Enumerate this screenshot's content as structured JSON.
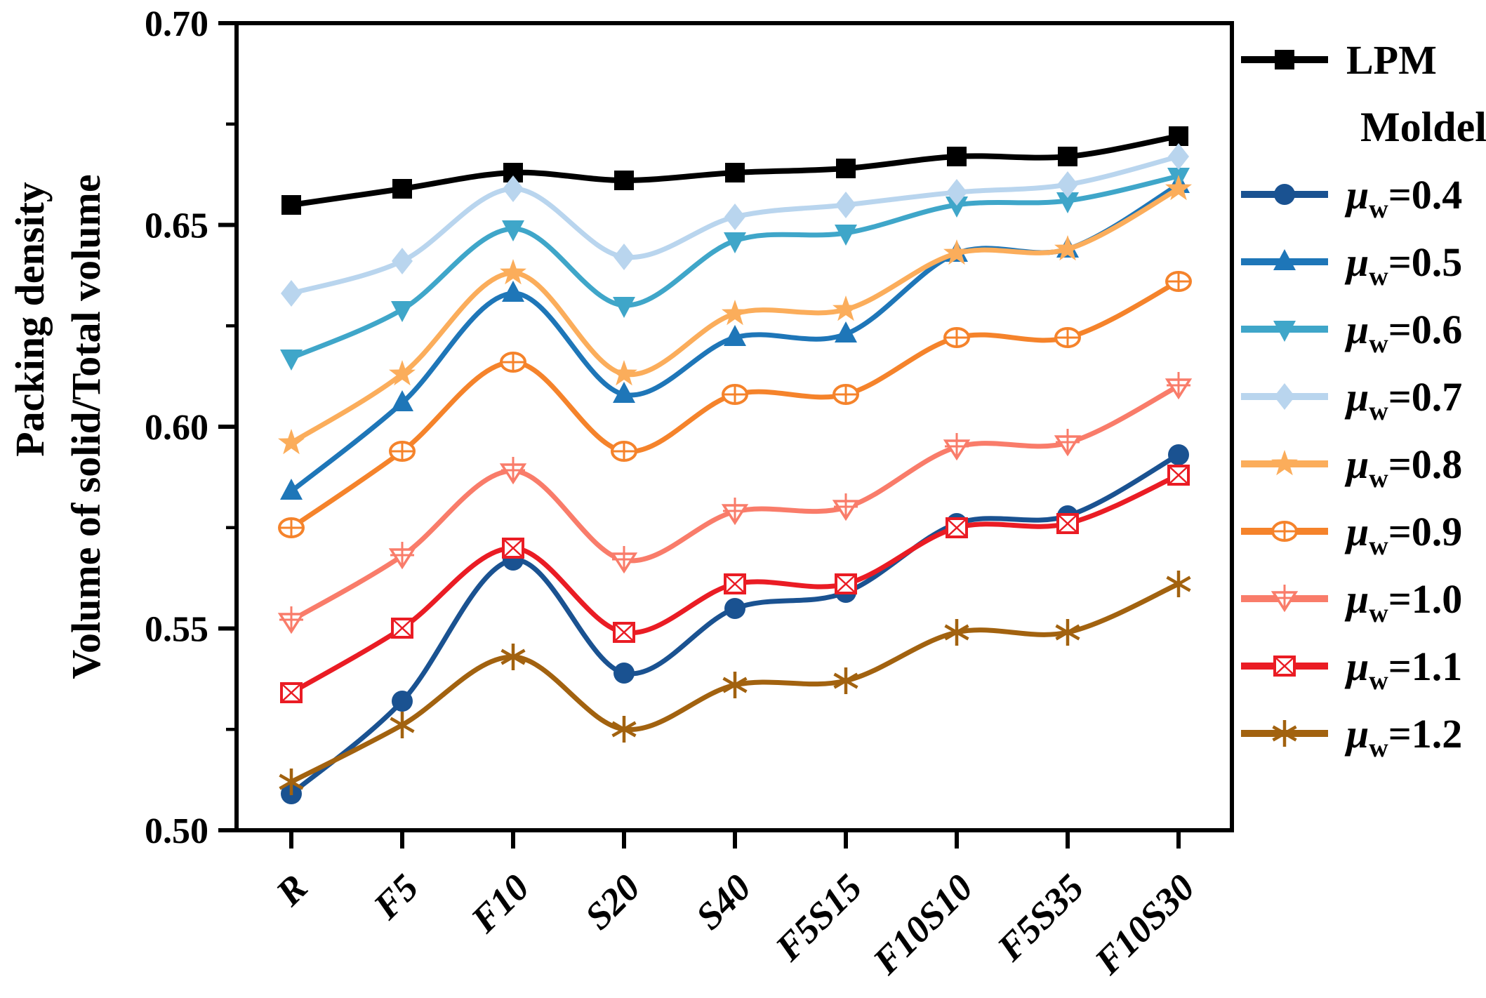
{
  "chart_data": {
    "type": "line",
    "title": "",
    "ylabel_line1": "Packing density",
    "ylabel_line2": "Volume of solid/Total volume",
    "xlabel": "",
    "ylim": [
      0.5,
      0.7
    ],
    "yticks": [
      "0.70",
      "0.65",
      "0.60",
      "0.55",
      "0.50"
    ],
    "ytick_values": [
      0.7,
      0.65,
      0.6,
      0.55,
      0.5
    ],
    "minor_ytick_values": [
      0.675,
      0.625,
      0.575,
      0.525
    ],
    "grid": false,
    "smoothing": "spline",
    "legend_position": "right",
    "legend_header": "Moldel",
    "categories": [
      "R",
      "F5",
      "F10",
      "S20",
      "S40",
      "F5S15",
      "F10S10",
      "F5S35",
      "F10S30"
    ],
    "series": [
      {
        "label": "LPM",
        "marker": "square",
        "color": "#000000",
        "values": [
          0.655,
          0.659,
          0.663,
          0.661,
          0.663,
          0.664,
          0.667,
          0.667,
          0.672
        ]
      },
      {
        "label_base": "μ",
        "label_sub": "w",
        "label_rest": "=0.4",
        "marker": "circle",
        "color": "#1A5291",
        "values": [
          0.509,
          0.532,
          0.567,
          0.539,
          0.555,
          0.559,
          0.576,
          0.578,
          0.593
        ]
      },
      {
        "label_base": "μ",
        "label_sub": "w",
        "label_rest": "=0.5",
        "marker": "triangle-up",
        "color": "#1E76B8",
        "values": [
          0.584,
          0.606,
          0.633,
          0.608,
          0.622,
          0.623,
          0.643,
          0.644,
          0.66
        ]
      },
      {
        "label_base": "μ",
        "label_sub": "w",
        "label_rest": "=0.6",
        "marker": "triangle-down",
        "color": "#3FA6C9",
        "values": [
          0.617,
          0.629,
          0.649,
          0.63,
          0.646,
          0.648,
          0.655,
          0.656,
          0.662
        ]
      },
      {
        "label_base": "μ",
        "label_sub": "w",
        "label_rest": "=0.7",
        "marker": "diamond",
        "color": "#B9D5EE",
        "values": [
          0.633,
          0.641,
          0.659,
          0.642,
          0.652,
          0.655,
          0.658,
          0.66,
          0.667
        ]
      },
      {
        "label_base": "μ",
        "label_sub": "w",
        "label_rest": "=0.8",
        "marker": "star",
        "color": "#FBAD5B",
        "values": [
          0.596,
          0.613,
          0.638,
          0.613,
          0.628,
          0.629,
          0.643,
          0.644,
          0.659
        ]
      },
      {
        "label_base": "μ",
        "label_sub": "w",
        "label_rest": "=0.9",
        "marker": "circle-plus",
        "color": "#F5832B",
        "values": [
          0.575,
          0.594,
          0.616,
          0.594,
          0.608,
          0.608,
          0.622,
          0.622,
          0.636
        ]
      },
      {
        "label_base": "μ",
        "label_sub": "w",
        "label_rest": "=1.0",
        "marker": "triangle-down-plus",
        "color": "#F97C6A",
        "values": [
          0.552,
          0.568,
          0.589,
          0.567,
          0.579,
          0.58,
          0.595,
          0.596,
          0.61
        ]
      },
      {
        "label_base": "μ",
        "label_sub": "w",
        "label_rest": "=1.1",
        "marker": "square-x",
        "color": "#EA1C24",
        "values": [
          0.534,
          0.55,
          0.57,
          0.549,
          0.561,
          0.561,
          0.575,
          0.576,
          0.588
        ]
      },
      {
        "label_base": "μ",
        "label_sub": "w",
        "label_rest": "=1.2",
        "marker": "asterisk",
        "color": "#A2620F",
        "values": [
          0.512,
          0.526,
          0.543,
          0.525,
          0.536,
          0.537,
          0.549,
          0.549,
          0.561
        ]
      }
    ]
  }
}
